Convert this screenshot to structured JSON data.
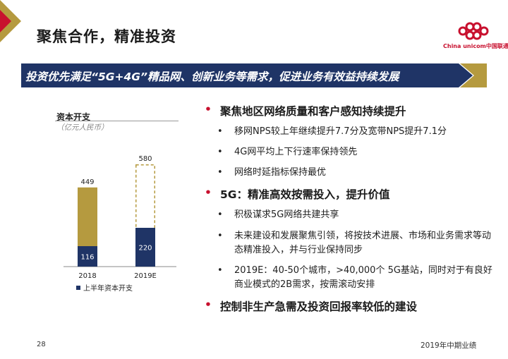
{
  "slide": {
    "title": "聚焦合作，精准投资",
    "banner": "投资优先满足“5G+4G”精品网、创新业务等需求，促进业务有效益持续发展",
    "logo_text": "China unicom中国联通",
    "page_number": "28",
    "footer_right": "2019年中期业绩"
  },
  "colors": {
    "gold": "#b59a3f",
    "navy": "#1f3466",
    "red": "#c8102e",
    "banner_gold": "#b59a3f"
  },
  "chart_data": {
    "type": "bar",
    "title": "资本开支",
    "unit": "（亿元人民币）",
    "categories": [
      "2018",
      "2019E"
    ],
    "series": [
      {
        "name": "上半年资本开支",
        "values": [
          116,
          220
        ]
      }
    ],
    "totals": [
      449,
      580
    ],
    "totals_style": [
      "solid",
      "dashed-outline"
    ],
    "legend": "bottom"
  },
  "bullets": [
    {
      "text": "聚焦地区网络质量和客户感知持续提升",
      "subs": [
        "移网NPS较上年继续提升7.7分及宽带NPS提升7.1分",
        "4G网平均上下行速率保持领先",
        "网络时延指标保持最优"
      ]
    },
    {
      "text": "5G：精准高效按需投入，提升价值",
      "subs": [
        "积极谋求5G网络共建共享",
        "未来建设和发展聚焦引领，将按技术进展、市场和业务需求等动态精准投入，并与行业保持同步",
        "2019E：40-50个城市，>40,000个 5G基站，同时对于有良好商业模式的2B需求，按需滚动安排"
      ]
    },
    {
      "text": "控制非生产急需及投资回报率较低的建设",
      "subs": []
    }
  ]
}
